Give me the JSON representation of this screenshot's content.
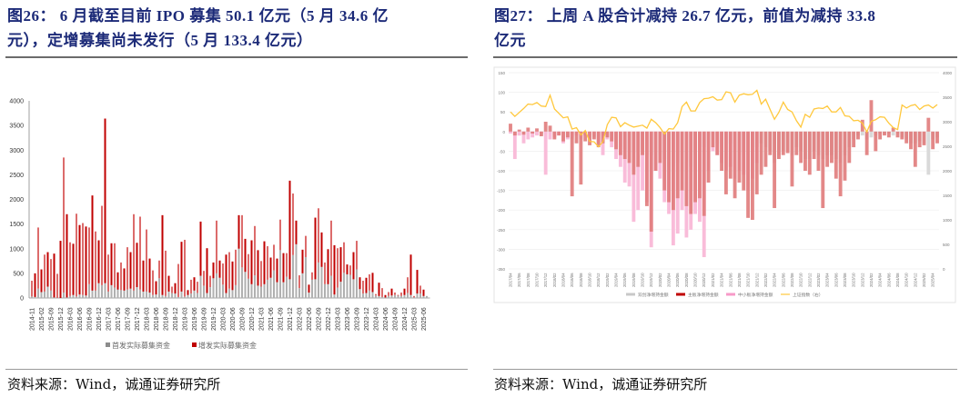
{
  "left_panel": {
    "title": "图26：  6月截至目前IPO募集50.1亿元（5月34.6亿元），定增募集尚未发行（5月133.4亿元）",
    "title_line1": "图26：   6 月截至目前 IPO 募集 50.1 亿元（5 月 34.6 亿",
    "title_line2": "元），定增募集尚未发行（5 月 133.4 亿元）",
    "source": "资料来源：Wind，诚通证券研究所"
  },
  "right_panel": {
    "title_line1": "图27：   上周 A 股合计减持 26.7 亿元，前值为减持 33.8",
    "title_line2": "亿元",
    "source": "资料来源：Wind，诚通证券研究所"
  },
  "chart_data": [
    {
      "type": "bar",
      "stacked": true,
      "ylim": [
        0,
        4000
      ],
      "yticks": [
        "0",
        "500",
        "1000",
        "1500",
        "2000",
        "2500",
        "3000",
        "3500",
        "4000"
      ],
      "grid": false,
      "legend_position": "bottom",
      "x_tick_labels": [
        "2014-11",
        "2015-02",
        "2015-09",
        "2015-12",
        "2016-03",
        "2016-06",
        "2016-09",
        "2016-12",
        "2017-03",
        "2017-06",
        "2017-09",
        "2017-12",
        "2018-03",
        "2018-06",
        "2018-09",
        "2018-12",
        "2019-03",
        "2019-06",
        "2019-09",
        "2019-12",
        "2020-03",
        "2020-06",
        "2020-09",
        "2020-12",
        "2021-03",
        "2021-06",
        "2021-09",
        "2021-12",
        "2022-03",
        "2022-06",
        "2022-09",
        "2022-12",
        "2023-03",
        "2023-06",
        "2023-09",
        "2023-12",
        "2024-03",
        "2024-06",
        "2024-09",
        "2024-12",
        "2025-03",
        "2025-06"
      ],
      "series": [
        {
          "name": "首发实际募集资金",
          "color": "#b0b0b0",
          "values": [
            30,
            20,
            190,
            120,
            130,
            230,
            150,
            10,
            0,
            0,
            110,
            10,
            40,
            60,
            30,
            70,
            60,
            50,
            280,
            150,
            150,
            300,
            260,
            300,
            130,
            260,
            210,
            170,
            160,
            150,
            170,
            190,
            150,
            220,
            170,
            130,
            130,
            110,
            60,
            70,
            400,
            60,
            40,
            130,
            100,
            90,
            20,
            130,
            30,
            60,
            90,
            150,
            100,
            450,
            250,
            100,
            220,
            400,
            500,
            410,
            270,
            100,
            190,
            160,
            260,
            1000,
            620,
            530,
            390,
            280,
            460,
            250,
            230,
            280,
            370,
            410,
            560,
            320,
            970,
            320,
            430,
            380,
            870,
            1090,
            200,
            500,
            830,
            110,
            370,
            380,
            720,
            630,
            280,
            280,
            450,
            70,
            210,
            330,
            510,
            480,
            470,
            380,
            580,
            180,
            90,
            100,
            150,
            120,
            50,
            40,
            20,
            10,
            40,
            50,
            60,
            50,
            40,
            60,
            100,
            60,
            10,
            90,
            90,
            40,
            40
          ]
        },
        {
          "name": "增发实际募集资金",
          "color": "#c00000",
          "values": [
            320,
            480,
            1240,
            460,
            750,
            700,
            640,
            890,
            490,
            1160,
            2740,
            1690,
            1090,
            1040,
            1680,
            1410,
            1460,
            1400,
            1150,
            1930,
            1200,
            870,
            1610,
            3340,
            750,
            850,
            900,
            350,
            560,
            450,
            860,
            740,
            1550,
            900,
            1480,
            630,
            1260,
            690,
            500,
            270,
            360,
            1620,
            920,
            320,
            130,
            210,
            670,
            1010,
            1150,
            100,
            280,
            270,
            230,
            1100,
            300,
            910,
            230,
            320,
            1070,
            350,
            430,
            780,
            740,
            580,
            720,
            680,
            1060,
            670,
            500,
            890,
            1000,
            720,
            520,
            870,
            680,
            410,
            520,
            480,
            620,
            590,
            480,
            2000,
            1250,
            480,
            260,
            480,
            430,
            160,
            150,
            1250,
            1100,
            700,
            440,
            710,
            1120,
            1000,
            800,
            700,
            620,
            200,
            190,
            550,
            580,
            240,
            260,
            310,
            330,
            390,
            30,
            270,
            180,
            50,
            80,
            140,
            50,
            10,
            70,
            130,
            320,
            820,
            30,
            480,
            160,
            130,
            0
          ]
        }
      ]
    },
    {
      "type": "bar+line",
      "ylim": [
        -350,
        150
      ],
      "yticks": [
        "-350",
        "-300",
        "-250",
        "-200",
        "-150",
        "-100",
        "-50",
        "0",
        "50",
        "100",
        "150"
      ],
      "y2lim": [
        0,
        4000
      ],
      "y2ticks": [
        "0",
        "500",
        "1000",
        "1500",
        "2000",
        "2500",
        "3000",
        "3500",
        "4000"
      ],
      "grid": true,
      "legend_position": "bottom",
      "x_tick_labels": [
        "2017/04",
        "2017/06",
        "2017/08",
        "2017/10",
        "2017/12",
        "2018/02",
        "2018/04",
        "2018/06",
        "2018/08",
        "2018/10",
        "2018/12",
        "2019/02",
        "2019/04",
        "2019/06",
        "2019/08",
        "2019/10",
        "2019/12",
        "2020/02",
        "2020/04",
        "2020/06",
        "2020/08",
        "2020/10",
        "2020/12",
        "2021/02",
        "2021/04",
        "2021/06",
        "2021/08",
        "2021/10",
        "2021/12",
        "2022/02",
        "2022/04",
        "2022/06",
        "2022/08",
        "2022/10",
        "2022/12",
        "2023/02",
        "2023/04",
        "2023/06",
        "2023/08",
        "2023/10",
        "2023/12",
        "2024/02",
        "2024/04",
        "2024/06",
        "2024/08",
        "2024/10",
        "2024/12",
        "2025/02",
        "2025/04"
      ],
      "x_start": "2017/04",
      "series": [
        {
          "name": "双创净增持金额",
          "color": "#d9d9d9",
          "axis": "left",
          "values": [
            -5,
            -8,
            -10,
            -5,
            -6,
            -5,
            -8,
            -10,
            -5,
            -5,
            -10,
            -8,
            -10,
            -15,
            -20,
            -10,
            -15,
            -10,
            -20,
            -15,
            -20,
            -20,
            -15,
            -20,
            -30,
            -40,
            -45,
            -50,
            -55,
            -50,
            -45,
            -60,
            -60,
            -50,
            -60,
            -70,
            -90,
            -90,
            -80,
            -60,
            -80,
            -90,
            -60,
            -50,
            -40,
            -30,
            -20,
            -30,
            -40,
            -50,
            -30,
            -40,
            -60,
            -50,
            -60,
            -50,
            -40,
            -30,
            -40,
            -50,
            -80,
            -60,
            -50,
            -50,
            -60,
            -40,
            -50,
            -70,
            -70,
            -50,
            -60,
            -70,
            -60,
            -60,
            -70,
            -80,
            -60,
            -40,
            -20,
            -10,
            -10,
            -20,
            -15,
            -10,
            -5,
            -5,
            -5,
            -10,
            -5,
            -15,
            -20,
            -30,
            -30,
            -25,
            -30,
            -110,
            -20,
            -15
          ]
        },
        {
          "name": "中小板净增持金额",
          "color": "#f7a8d0",
          "axis": "left",
          "values": [
            -5,
            -70,
            -10,
            -30,
            -20,
            -15,
            -10,
            -5,
            -110,
            -20,
            -15,
            -10,
            -30,
            -20,
            -15,
            -10,
            -20,
            -10,
            -15,
            -10,
            -30,
            -60,
            -20,
            -40,
            -70,
            -90,
            -130,
            -140,
            -230,
            -200,
            -150,
            -180,
            -295,
            -100,
            -120,
            -180,
            -210,
            -290,
            -260,
            -200,
            -270,
            -250,
            -210,
            -230,
            -320,
            -100,
            -50,
            -60,
            -80,
            -100,
            -90,
            -120,
            -100,
            -110,
            -150,
            -120,
            -80,
            0,
            0,
            0,
            0,
            0,
            0,
            0,
            0,
            0,
            0,
            0,
            0,
            0,
            0,
            0,
            0,
            0,
            0,
            0,
            0,
            0,
            0,
            0,
            0,
            0,
            0,
            0,
            0,
            0,
            0,
            0,
            0,
            0,
            0,
            0,
            0,
            0,
            0,
            0,
            0,
            0
          ]
        },
        {
          "name": "主板净增持金额",
          "color": "#c00000",
          "axis": "left",
          "values": [
            20,
            -10,
            5,
            -8,
            10,
            -5,
            8,
            -12,
            25,
            15,
            -20,
            -10,
            -25,
            -15,
            -165,
            -30,
            -135,
            -25,
            -35,
            -20,
            -40,
            -30,
            -15,
            -25,
            -45,
            -60,
            -70,
            -80,
            -110,
            -90,
            -60,
            -190,
            -255,
            -100,
            -80,
            -150,
            -180,
            -200,
            -170,
            -150,
            -190,
            -210,
            -180,
            -170,
            -215,
            -130,
            -40,
            -60,
            -100,
            -160,
            -120,
            -170,
            -130,
            -150,
            -220,
            -225,
            -160,
            -110,
            -90,
            -60,
            -195,
            -70,
            -60,
            -55,
            -140,
            -60,
            -80,
            -100,
            -110,
            -70,
            -100,
            -195,
            -90,
            -80,
            -120,
            -165,
            -125,
            -80,
            -40,
            -20,
            30,
            -60,
            80,
            -50,
            -20,
            -10,
            -15,
            10,
            -15,
            -20,
            -30,
            -45,
            -90,
            -40,
            -35,
            35,
            -45,
            -30
          ]
        },
        {
          "name": "上证指数（右）",
          "color": "#ffc83d",
          "axis": "right",
          "type": "line",
          "values": [
            3200,
            3110,
            3190,
            3270,
            3360,
            3350,
            3390,
            3320,
            3310,
            3540,
            3260,
            3170,
            3080,
            3100,
            2850,
            2880,
            2730,
            2820,
            2600,
            2590,
            2490,
            2590,
            2940,
            3090,
            3080,
            2900,
            2980,
            2930,
            2890,
            2910,
            2930,
            2870,
            3050,
            2980,
            2880,
            2750,
            2860,
            2850,
            2980,
            3310,
            3400,
            3220,
            3220,
            3390,
            3470,
            3480,
            3510,
            3440,
            3450,
            3610,
            3590,
            3400,
            3540,
            3570,
            3550,
            3560,
            3640,
            3360,
            3460,
            3250,
            3050,
            3190,
            3400,
            3250,
            3200,
            3020,
            2890,
            3150,
            3090,
            3260,
            3280,
            3270,
            3320,
            3200,
            3200,
            3290,
            3120,
            3110,
            3020,
            3030,
            2970,
            2790,
            3010,
            3040,
            3100,
            3090,
            2970,
            2880,
            2840,
            3340,
            3280,
            3330,
            3350,
            3250,
            3320,
            3340,
            3280,
            3350
          ]
        }
      ]
    }
  ]
}
